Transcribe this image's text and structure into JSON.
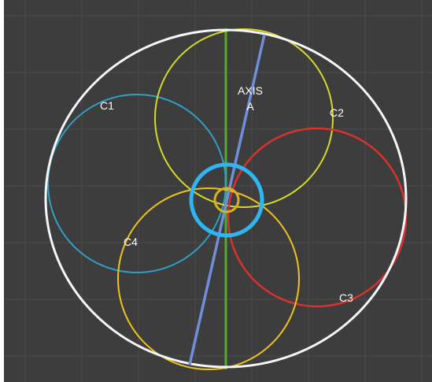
{
  "diagram": {
    "labels": {
      "c1": "C1",
      "c2": "C2",
      "c3": "C3",
      "c4": "C4",
      "axis_line1": "AXIS",
      "axis_line2": "A"
    },
    "colors": {
      "background": "#3d3d3d",
      "grid": "#4b4b4b",
      "outer_circle": "#f4f6fb",
      "c1": "#2f9fc6",
      "c2": "#d6d82a",
      "c3": "#d8322c",
      "c4": "#f0c21e",
      "axis": "#6f8fd8",
      "vertical_axis": "#56a82e",
      "center_ring": "#2fb6f0",
      "center_small": "#d9b21c",
      "label": "#ffffff"
    }
  }
}
